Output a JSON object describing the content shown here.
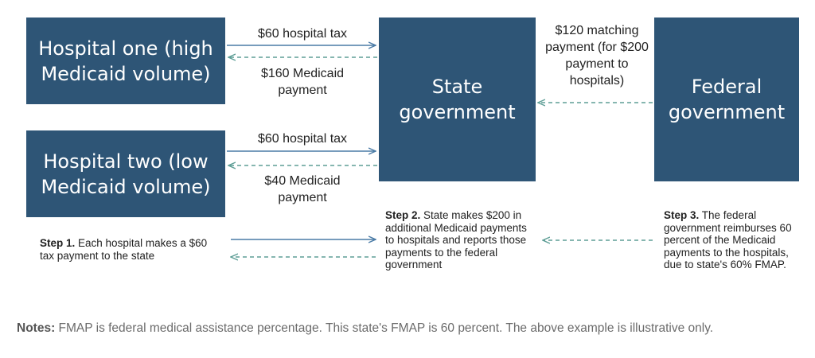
{
  "boxes": {
    "hospital_one": "Hospital one (high Medicaid volume)",
    "hospital_two": "Hospital two (low Medicaid volume)",
    "state": "State government",
    "federal": "Federal government"
  },
  "flows": {
    "h1_tax": "$60 hospital tax",
    "h1_payment": "$160 Medicaid payment",
    "h2_tax": "$60 hospital tax",
    "h2_payment": "$40 Medicaid payment",
    "federal_match": "$120 matching payment (for $200 payment to hospitals)"
  },
  "steps": {
    "step1": {
      "label": "Step 1.",
      "text": "Each hospital makes a $60 tax payment to the state"
    },
    "step2": {
      "label": "Step 2.",
      "text": "State makes $200 in additional Medicaid payments to hospitals and reports those payments to the federal government"
    },
    "step3": {
      "label": "Step 3.",
      "text": "The federal government reimburses 60 percent of the Medicaid payments to the hospitals, due to state's 60% FMAP."
    }
  },
  "notes": {
    "label": "Notes:",
    "text": "FMAP is federal medical assistance percentage. This state's FMAP is 60 percent. The above example is illustrative only."
  },
  "colors": {
    "box_fill": "#2e5576",
    "solid_arrow": "#4a7ba6",
    "dashed_arrow": "#5e9e96"
  }
}
